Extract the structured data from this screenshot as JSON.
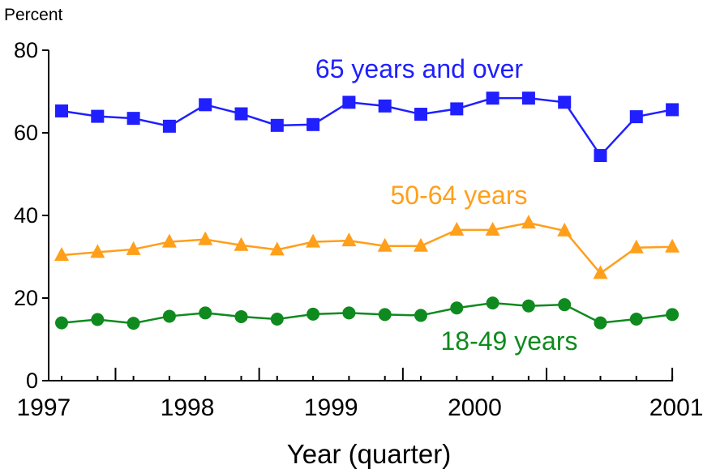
{
  "chart_data": {
    "type": "line",
    "ylabel": "Percent",
    "xlabel": "Year (quarter)",
    "ylim": [
      0,
      80
    ],
    "yticks": [
      "0",
      "20",
      "40",
      "60",
      "80"
    ],
    "xtick_labels": [
      "1997",
      "1998",
      "1999",
      "2000",
      "2001"
    ],
    "grid": false,
    "legend": "inline labels",
    "x": [
      "1996 Q3",
      "1996 Q4",
      "1997 Q1",
      "1997 Q2",
      "1997 Q3",
      "1997 Q4",
      "1998 Q1",
      "1998 Q2",
      "1998 Q3",
      "1998 Q4",
      "1999 Q1",
      "1999 Q2",
      "1999 Q3",
      "1999 Q4",
      "2000 Q1",
      "2000 Q2",
      "2000 Q3",
      "2000 Q4"
    ],
    "series": [
      {
        "name": "65 years and over",
        "color": "#1f1fff",
        "marker": "square",
        "values": [
          65.3,
          64,
          63.5,
          61.6,
          66.8,
          64.6,
          61.8,
          62,
          67.4,
          66.5,
          64.5,
          65.8,
          68.4,
          68.4,
          67.4,
          54.5,
          63.9,
          65.6
        ]
      },
      {
        "name": "50-64 years",
        "color": "#ff9f1a",
        "marker": "triangle",
        "values": [
          30.4,
          31.1,
          31.8,
          33.6,
          34.2,
          32.8,
          31.7,
          33.6,
          33.9,
          32.6,
          32.6,
          36.5,
          36.5,
          38.2,
          36.3,
          26,
          32.2,
          32.4
        ]
      },
      {
        "name": "18-49 years",
        "color": "#0f8a1e",
        "marker": "circle",
        "values": [
          14,
          14.8,
          13.9,
          15.6,
          16.4,
          15.5,
          14.9,
          16.1,
          16.4,
          16,
          15.8,
          17.6,
          18.8,
          18.1,
          18.4,
          14,
          14.9,
          16
        ]
      }
    ]
  }
}
